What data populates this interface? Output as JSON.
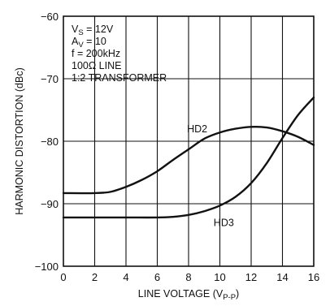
{
  "chart_data": {
    "type": "line",
    "xlabel": "LINE VOLTAGE (V",
    "xlabel_sub": "P-P",
    "xlabel_close": ")",
    "ylabel": "HARMONIC DISTORTION (dBc)",
    "xlim": [
      0,
      16
    ],
    "ylim": [
      -100,
      -60
    ],
    "xticks": [
      0,
      2,
      4,
      6,
      8,
      10,
      12,
      14,
      16
    ],
    "yticks": [
      -100,
      -90,
      -80,
      -70,
      -60
    ],
    "x_tick_labels": [
      "0",
      "2",
      "4",
      "6",
      "8",
      "10",
      "12",
      "14",
      "16"
    ],
    "y_tick_labels": [
      "−100",
      "−90",
      "−80",
      "−70",
      "−60"
    ],
    "grid": true,
    "conditions": [
      {
        "main": "V",
        "sub": "S",
        "rest": " = 12V"
      },
      {
        "main": "A",
        "sub": "V",
        "rest": " = 10"
      },
      {
        "main": "f = 200kHz",
        "sub": "",
        "rest": ""
      },
      {
        "main": "100Ω LINE",
        "sub": "",
        "rest": ""
      },
      {
        "main": "1:2 TRANSFORMER",
        "sub": "",
        "rest": ""
      }
    ],
    "series": [
      {
        "name": "HD2",
        "label_at": [
          7.9,
          -78.6
        ],
        "points": [
          [
            0,
            -88.3
          ],
          [
            2,
            -88.3
          ],
          [
            3,
            -88.1
          ],
          [
            4,
            -87.3
          ],
          [
            5,
            -86.2
          ],
          [
            6,
            -84.8
          ],
          [
            7,
            -83.0
          ],
          [
            8,
            -81.3
          ],
          [
            9,
            -79.6
          ],
          [
            10,
            -78.6
          ],
          [
            11,
            -78.0
          ],
          [
            12,
            -77.7
          ],
          [
            13,
            -77.8
          ],
          [
            14,
            -78.4
          ],
          [
            15,
            -79.3
          ],
          [
            16,
            -80.6
          ]
        ]
      },
      {
        "name": "HD3",
        "label_at": [
          9.6,
          -93.6
        ],
        "points": [
          [
            0,
            -92.2
          ],
          [
            2,
            -92.2
          ],
          [
            4,
            -92.2
          ],
          [
            6,
            -92.2
          ],
          [
            7,
            -92.1
          ],
          [
            8,
            -91.8
          ],
          [
            9,
            -91.2
          ],
          [
            10,
            -90.3
          ],
          [
            11,
            -88.9
          ],
          [
            12,
            -86.7
          ],
          [
            13,
            -83.5
          ],
          [
            14,
            -79.5
          ],
          [
            15,
            -75.8
          ],
          [
            16,
            -73.0
          ]
        ]
      }
    ]
  }
}
